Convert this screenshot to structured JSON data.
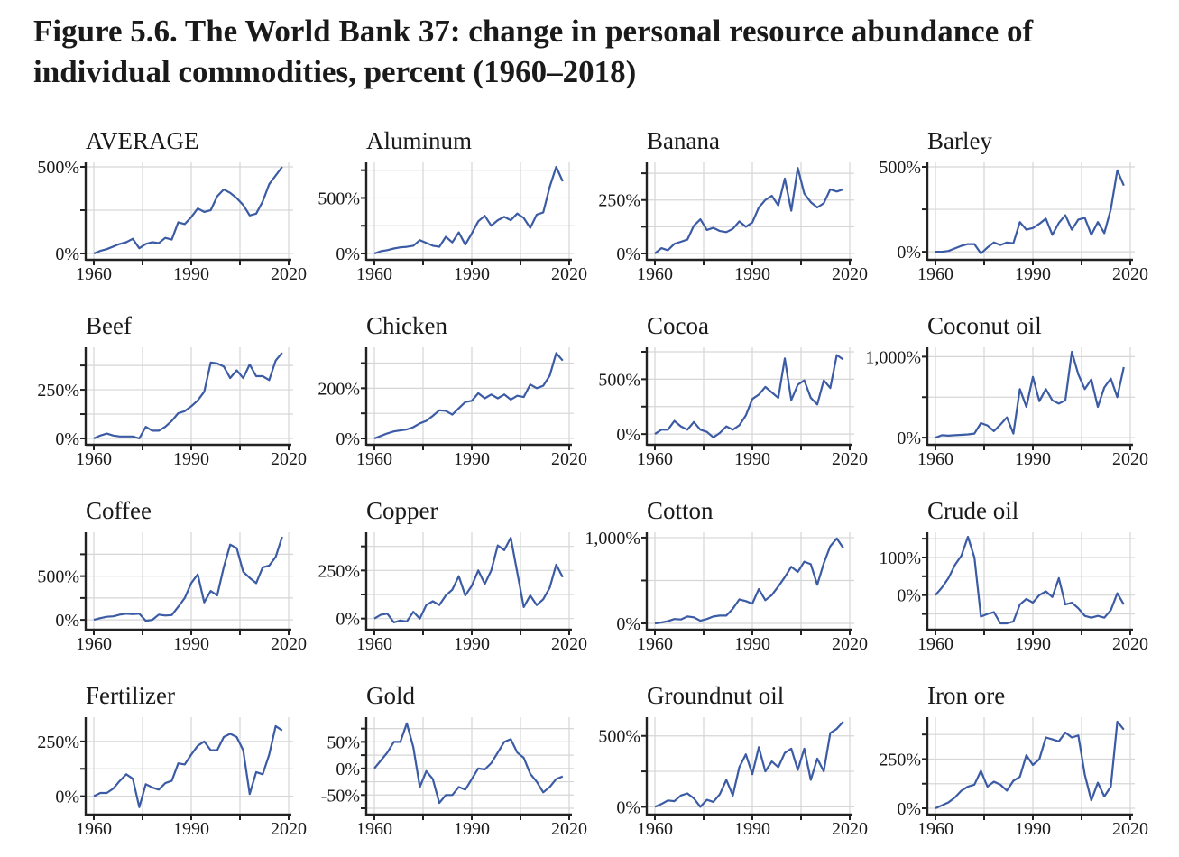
{
  "title": "Figure 5.6. The World Bank 37: change in personal resource abundance of individual commodities, percent (1960–2018)",
  "colors": {
    "line": "#3b5ba5",
    "grid": "#d6d6d6",
    "axis": "#222222"
  },
  "chart_data": {
    "type": "line",
    "layout": "small multiples, 4 columns x 4 rows, independent y scales",
    "grid": true,
    "x": [
      1960,
      1962,
      1964,
      1966,
      1968,
      1970,
      1972,
      1974,
      1976,
      1978,
      1980,
      1982,
      1984,
      1986,
      1988,
      1990,
      1992,
      1994,
      1996,
      1998,
      2000,
      2002,
      2004,
      2006,
      2008,
      2010,
      2012,
      2014,
      2016,
      2018
    ],
    "xticks": [
      1960,
      1975,
      1990,
      2005,
      2020
    ],
    "xtick_labels": [
      {
        "value": 1960,
        "label": "1960"
      },
      {
        "value": 1990,
        "label": "1990"
      },
      {
        "value": 2020,
        "label": "2020"
      }
    ],
    "xlim": [
      1960,
      2020
    ],
    "panels": [
      {
        "title": "AVERAGE",
        "ylim": [
          0,
          500
        ],
        "yticks": [
          0,
          250,
          500
        ],
        "ytick_labels": [
          {
            "value": 0,
            "label": "0%"
          },
          {
            "value": 500,
            "label": "500%"
          }
        ],
        "values": [
          0,
          15,
          25,
          40,
          55,
          65,
          85,
          30,
          55,
          65,
          60,
          90,
          80,
          180,
          170,
          210,
          260,
          240,
          250,
          330,
          370,
          350,
          320,
          280,
          220,
          230,
          300,
          400,
          450,
          500
        ]
      },
      {
        "title": "Aluminum",
        "ylim": [
          0,
          780
        ],
        "yticks": [
          0,
          250,
          500,
          750
        ],
        "ytick_labels": [
          {
            "value": 0,
            "label": "0%"
          },
          {
            "value": 500,
            "label": "500%"
          }
        ],
        "values": [
          0,
          20,
          30,
          45,
          55,
          60,
          70,
          120,
          95,
          70,
          60,
          150,
          100,
          190,
          80,
          180,
          290,
          340,
          250,
          300,
          330,
          300,
          360,
          320,
          230,
          350,
          370,
          600,
          780,
          650
        ]
      },
      {
        "title": "Banana",
        "ylim": [
          0,
          405
        ],
        "yticks": [
          0,
          125,
          250,
          375
        ],
        "ytick_labels": [
          {
            "value": 0,
            "label": "0%"
          },
          {
            "value": 250,
            "label": "250%"
          }
        ],
        "values": [
          0,
          25,
          15,
          45,
          55,
          65,
          130,
          160,
          110,
          120,
          105,
          100,
          115,
          150,
          125,
          145,
          215,
          250,
          270,
          225,
          350,
          200,
          400,
          280,
          240,
          215,
          235,
          300,
          290,
          300
        ]
      },
      {
        "title": "Barley",
        "ylim": [
          -10,
          500
        ],
        "yticks": [
          0,
          250,
          500
        ],
        "ytick_labels": [
          {
            "value": 0,
            "label": "0%"
          },
          {
            "value": 500,
            "label": "500%"
          }
        ],
        "values": [
          0,
          0,
          5,
          20,
          35,
          45,
          45,
          -10,
          25,
          55,
          40,
          55,
          50,
          175,
          130,
          140,
          165,
          195,
          100,
          170,
          215,
          130,
          190,
          200,
          100,
          175,
          110,
          250,
          480,
          390
        ]
      },
      {
        "title": "Beef",
        "ylim": [
          0,
          445
        ],
        "yticks": [
          0,
          125,
          250,
          375
        ],
        "ytick_labels": [
          {
            "value": 0,
            "label": "0%"
          },
          {
            "value": 250,
            "label": "250%"
          }
        ],
        "values": [
          0,
          15,
          25,
          15,
          10,
          10,
          10,
          0,
          60,
          40,
          40,
          60,
          90,
          130,
          140,
          165,
          195,
          240,
          390,
          385,
          370,
          310,
          350,
          310,
          380,
          320,
          320,
          300,
          400,
          440
        ]
      },
      {
        "title": "Chicken",
        "ylim": [
          0,
          345
        ],
        "yticks": [
          0,
          100,
          200,
          300
        ],
        "ytick_labels": [
          {
            "value": 0,
            "label": "0%"
          },
          {
            "value": 200,
            "label": "200%"
          }
        ],
        "values": [
          0,
          10,
          20,
          28,
          32,
          36,
          45,
          60,
          70,
          90,
          112,
          110,
          95,
          120,
          145,
          150,
          180,
          160,
          175,
          160,
          175,
          155,
          170,
          165,
          215,
          200,
          210,
          250,
          340,
          310
        ]
      },
      {
        "title": "Cocoa",
        "ylim": [
          -40,
          750
        ],
        "yticks": [
          0,
          250,
          500,
          750
        ],
        "ytick_labels": [
          {
            "value": 0,
            "label": "0%"
          },
          {
            "value": 500,
            "label": "500%"
          }
        ],
        "values": [
          0,
          40,
          40,
          120,
          70,
          40,
          110,
          40,
          20,
          -30,
          10,
          70,
          40,
          80,
          170,
          320,
          360,
          430,
          380,
          330,
          690,
          310,
          450,
          490,
          330,
          270,
          490,
          420,
          720,
          680
        ]
      },
      {
        "title": "Coconut oil",
        "ylim": [
          -10,
          1060
        ],
        "yticks": [
          0,
          500,
          1000
        ],
        "ytick_labels": [
          {
            "value": 0,
            "label": "0%"
          },
          {
            "value": 1000,
            "label": "1,000%"
          }
        ],
        "values": [
          0,
          30,
          25,
          30,
          35,
          40,
          50,
          180,
          150,
          80,
          160,
          250,
          50,
          600,
          380,
          750,
          450,
          600,
          460,
          420,
          460,
          1060,
          780,
          600,
          720,
          380,
          620,
          730,
          500,
          870
        ]
      },
      {
        "title": "Coffee",
        "ylim": [
          -40,
          950
        ],
        "yticks": [
          0,
          250,
          500,
          750
        ],
        "ytick_labels": [
          {
            "value": 0,
            "label": "0%"
          },
          {
            "value": 500,
            "label": "500%"
          }
        ],
        "values": [
          0,
          20,
          35,
          40,
          60,
          70,
          65,
          70,
          -10,
          0,
          60,
          50,
          55,
          150,
          250,
          420,
          520,
          200,
          330,
          280,
          600,
          860,
          820,
          550,
          480,
          420,
          600,
          620,
          720,
          950
        ]
      },
      {
        "title": "Copper",
        "ylim": [
          -25,
          425
        ],
        "yticks": [
          0,
          125,
          250,
          375
        ],
        "ytick_labels": [
          {
            "value": 0,
            "label": "0%"
          },
          {
            "value": 250,
            "label": "250%"
          }
        ],
        "values": [
          0,
          20,
          25,
          -20,
          -10,
          -15,
          35,
          0,
          70,
          90,
          70,
          120,
          150,
          220,
          120,
          170,
          250,
          180,
          250,
          380,
          355,
          420,
          240,
          60,
          120,
          70,
          100,
          160,
          280,
          215
        ]
      },
      {
        "title": "Cotton",
        "ylim": [
          0,
          1010
        ],
        "yticks": [
          0,
          500,
          1000
        ],
        "ytick_labels": [
          {
            "value": 0,
            "label": "0%"
          },
          {
            "value": 1000,
            "label": "1,000%"
          }
        ],
        "values": [
          0,
          10,
          25,
          50,
          45,
          80,
          70,
          30,
          50,
          80,
          90,
          90,
          170,
          280,
          260,
          230,
          400,
          270,
          330,
          430,
          540,
          660,
          600,
          720,
          690,
          450,
          700,
          900,
          990,
          880
        ]
      },
      {
        "title": "Crude oil",
        "ylim": [
          -75,
          155
        ],
        "yticks": [
          -50,
          0,
          50,
          100,
          150
        ],
        "ytick_labels": [
          {
            "value": 0,
            "label": "0%"
          },
          {
            "value": 100,
            "label": "100%"
          }
        ],
        "values": [
          0,
          20,
          45,
          80,
          105,
          155,
          100,
          -57,
          -50,
          -45,
          -75,
          -75,
          -70,
          -25,
          -10,
          -20,
          0,
          10,
          -5,
          45,
          -25,
          -20,
          -35,
          -55,
          -60,
          -55,
          -60,
          -40,
          5,
          -25
        ]
      },
      {
        "title": "Fertilizer",
        "ylim": [
          -55,
          340
        ],
        "yticks": [
          0,
          125,
          250
        ],
        "ytick_labels": [
          {
            "value": 0,
            "label": "0%"
          },
          {
            "value": 250,
            "label": "250%"
          }
        ],
        "values": [
          0,
          15,
          15,
          35,
          70,
          100,
          80,
          -50,
          55,
          40,
          30,
          60,
          70,
          150,
          145,
          190,
          230,
          250,
          210,
          210,
          270,
          285,
          270,
          210,
          10,
          110,
          100,
          190,
          320,
          300
        ]
      },
      {
        "title": "Gold",
        "ylim": [
          -75,
          88
        ],
        "yticks": [
          -75,
          -50,
          -25,
          0,
          25,
          50,
          75
        ],
        "ytick_labels": [
          {
            "value": -50,
            "label": "-50%"
          },
          {
            "value": 0,
            "label": "0%"
          },
          {
            "value": 50,
            "label": "50%"
          }
        ],
        "values": [
          0,
          15,
          30,
          50,
          50,
          85,
          40,
          -35,
          -5,
          -20,
          -65,
          -50,
          -50,
          -35,
          -40,
          -20,
          0,
          -2,
          10,
          30,
          50,
          55,
          30,
          20,
          -10,
          -25,
          -45,
          -35,
          -20,
          -15
        ]
      },
      {
        "title": "Groundnut oil",
        "ylim": [
          -10,
          600
        ],
        "yticks": [
          0,
          250,
          500
        ],
        "ytick_labels": [
          {
            "value": 0,
            "label": "0%"
          },
          {
            "value": 500,
            "label": "500%"
          }
        ],
        "values": [
          0,
          20,
          45,
          40,
          80,
          95,
          60,
          0,
          50,
          35,
          90,
          190,
          80,
          280,
          370,
          230,
          420,
          250,
          320,
          280,
          380,
          410,
          260,
          410,
          190,
          340,
          250,
          520,
          550,
          600
        ]
      },
      {
        "title": "Iron ore",
        "ylim": [
          0,
          440
        ],
        "yticks": [
          0,
          125,
          250,
          375
        ],
        "ytick_labels": [
          {
            "value": 0,
            "label": "0%"
          },
          {
            "value": 250,
            "label": "250%"
          }
        ],
        "values": [
          0,
          15,
          30,
          55,
          90,
          110,
          120,
          190,
          110,
          135,
          120,
          90,
          140,
          160,
          270,
          220,
          250,
          360,
          350,
          340,
          385,
          360,
          370,
          170,
          40,
          130,
          60,
          110,
          440,
          400
        ]
      }
    ]
  }
}
